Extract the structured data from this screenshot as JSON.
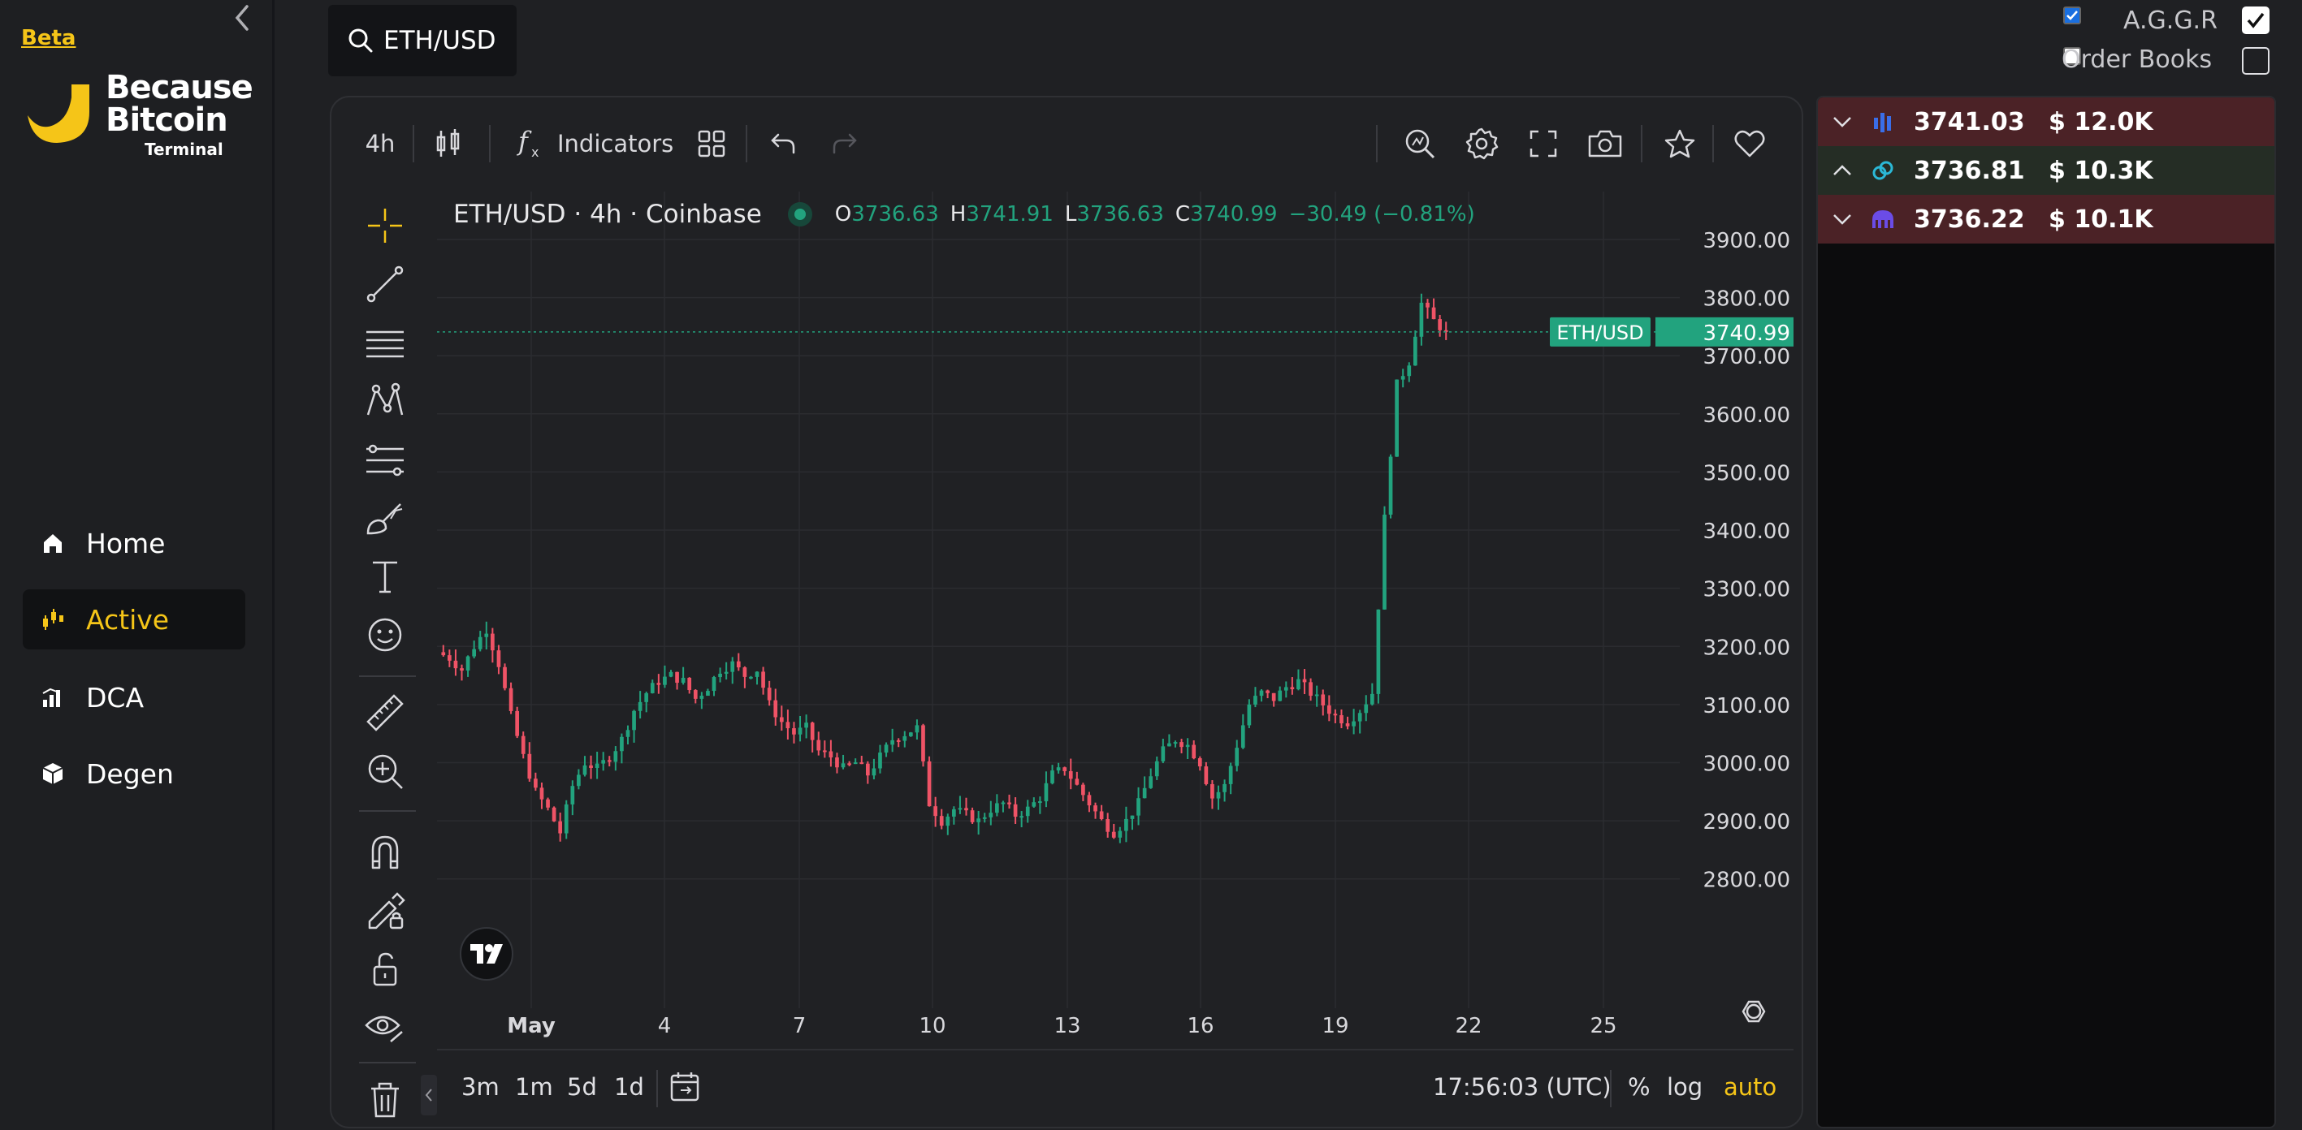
{
  "sidebar": {
    "beta": "Beta",
    "logo": {
      "line1": "Because",
      "line2": "Bitcoin",
      "line3": "Terminal"
    },
    "nav": [
      {
        "label": "Home",
        "icon": "home-icon",
        "active": false
      },
      {
        "label": "Active",
        "icon": "candles-icon",
        "active": true
      },
      {
        "label": "DCA",
        "icon": "bar-chart-icon",
        "active": false
      },
      {
        "label": "Degen",
        "icon": "cube-icon",
        "active": false
      }
    ]
  },
  "search": {
    "label": "ETH/USD"
  },
  "toolbar": {
    "interval": "4h",
    "indicators": "Indicators"
  },
  "legend": {
    "symbol": "ETH/USD · 4h · Coinbase",
    "o_label": "O",
    "o": "3736.63",
    "h_label": "H",
    "h": "3741.91",
    "l_label": "L",
    "l": "3736.63",
    "c_label": "C",
    "c": "3740.99",
    "change": "−30.49 (−0.81%)"
  },
  "price_tag": {
    "symbol": "ETH/USD",
    "price": "3740.99"
  },
  "bottom_toolbar": {
    "ranges": [
      "3m",
      "1m",
      "5d",
      "1d"
    ],
    "time": "17:56:03 (UTC)",
    "percent": "%",
    "log": "log",
    "auto": "auto"
  },
  "chart_data": {
    "type": "candlestick",
    "title": "ETH/USD · 4h · Coinbase",
    "y_ticks": [
      3900,
      3800,
      3700,
      3600,
      3500,
      3400,
      3300,
      3200,
      3100,
      3000,
      2900,
      2800
    ],
    "y_tick_labels": [
      "3900.00",
      "3800.00",
      "3700.00",
      "3600.00",
      "3500.00",
      "3400.00",
      "3300.00",
      "3200.00",
      "3100.00",
      "3000.00",
      "2900.00",
      "2800.00"
    ],
    "ylim": [
      2720,
      3960
    ],
    "x_tick_labels": [
      "May",
      "4",
      "7",
      "10",
      "13",
      "16",
      "19",
      "22",
      "25"
    ],
    "current_price": 3740.99,
    "close_path": [
      3190,
      3180,
      3160,
      3200,
      3230,
      3170,
      3080,
      3010,
      2950,
      2920,
      2880,
      2960,
      3000,
      2990,
      3010,
      3040,
      3090,
      3120,
      3140,
      3150,
      3140,
      3110,
      3130,
      3160,
      3170,
      3150,
      3160,
      3100,
      3070,
      3050,
      3060,
      3020,
      3010,
      2990,
      3000,
      2980,
      3010,
      3040,
      3050,
      3060,
      2930,
      2900,
      2920,
      2910,
      2900,
      2920,
      2930,
      2910,
      2920,
      2940,
      2980,
      2990,
      2960,
      2930,
      2900,
      2880,
      2900,
      2930,
      2980,
      3020,
      3040,
      3030,
      3000,
      2940,
      2960,
      3030,
      3100,
      3120,
      3110,
      3130,
      3140,
      3120,
      3100,
      3080,
      3070,
      3090,
      3120,
      3420,
      3650,
      3690,
      3790,
      3760,
      3740.99
    ]
  },
  "right_panel": {
    "aggr_label": "A.G.G.R",
    "order_books_label": "Order Books",
    "trades": [
      {
        "direction": "down",
        "exchange_icon": "bars-exchange-icon",
        "price": "3741.03",
        "amount": "12.0K",
        "color": "#4b2226"
      },
      {
        "direction": "up",
        "exchange_icon": "link-exchange-icon",
        "price": "3736.81",
        "amount": "10.3K",
        "color": "#252d25"
      },
      {
        "direction": "down",
        "exchange_icon": "kraken-exchange-icon",
        "price": "3736.22",
        "amount": "10.1K",
        "color": "#4b2226"
      }
    ],
    "currency": "$"
  },
  "colors": {
    "up": "#22a37e",
    "down": "#ef5366",
    "accent": "#f5c518"
  }
}
